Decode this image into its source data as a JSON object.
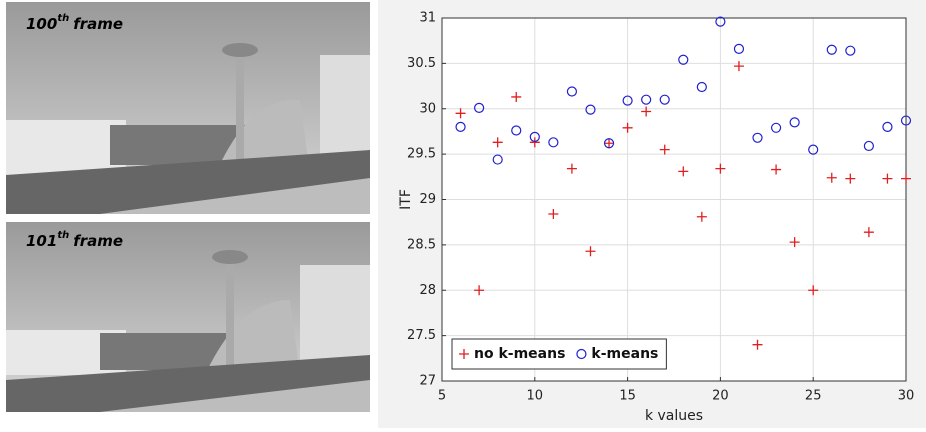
{
  "frames": [
    {
      "number": "100",
      "suffix": "th",
      "word": "frame"
    },
    {
      "number": "101",
      "suffix": "th",
      "word": "frame"
    }
  ],
  "chart_data": {
    "type": "scatter",
    "xlabel": "k values",
    "ylabel": "ITF",
    "x": [
      6,
      7,
      8,
      9,
      10,
      11,
      12,
      13,
      14,
      15,
      16,
      17,
      18,
      19,
      20,
      21,
      22,
      23,
      24,
      25,
      26,
      27,
      28,
      29,
      30
    ],
    "series": [
      {
        "name": "no k-means",
        "color": "#e02020",
        "marker": "plus",
        "values": [
          29.95,
          28.0,
          29.63,
          30.13,
          29.63,
          28.84,
          29.34,
          28.43,
          29.62,
          29.79,
          29.97,
          29.55,
          29.31,
          28.81,
          29.34,
          30.47,
          27.4,
          29.33,
          28.53,
          28.0,
          29.24,
          29.23,
          28.64,
          29.23,
          29.23
        ]
      },
      {
        "name": "k-means",
        "color": "#2020d0",
        "marker": "circle",
        "values": [
          29.8,
          30.01,
          29.44,
          29.76,
          29.69,
          29.63,
          30.19,
          29.99,
          29.62,
          30.09,
          30.1,
          30.1,
          30.54,
          30.24,
          30.96,
          30.66,
          29.68,
          29.79,
          29.85,
          29.55,
          30.65,
          30.64,
          29.59,
          29.8,
          29.87
        ]
      }
    ],
    "xlim": [
      5,
      30
    ],
    "xticks": [
      5,
      10,
      15,
      20,
      25,
      30
    ],
    "ylim": [
      27,
      31
    ],
    "yticks": [
      27,
      27.5,
      28,
      28.5,
      29,
      29.5,
      30,
      30.5,
      31
    ],
    "grid": true,
    "legend": "lower-left"
  }
}
